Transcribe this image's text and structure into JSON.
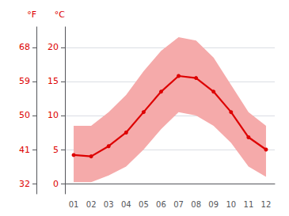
{
  "chart_data": {
    "type": "line",
    "categories": [
      "01",
      "02",
      "03",
      "04",
      "05",
      "06",
      "07",
      "08",
      "09",
      "10",
      "11",
      "12"
    ],
    "values": [
      4.2,
      4.0,
      5.5,
      7.5,
      10.5,
      13.5,
      15.8,
      15.5,
      13.5,
      10.5,
      6.8,
      5.0
    ],
    "color": "#dd0000",
    "band": {
      "lower": [
        0.2,
        0.2,
        1.2,
        2.5,
        5.0,
        8.0,
        10.5,
        10.0,
        8.5,
        6.0,
        2.5,
        1.0
      ],
      "upper": [
        8.5,
        8.5,
        10.5,
        13.0,
        16.5,
        19.5,
        21.5,
        21.0,
        18.5,
        14.5,
        10.5,
        8.5
      ],
      "color": "#f5aaaa"
    },
    "ylim": [
      -1.5,
      23
    ],
    "yticks": [
      0,
      5,
      10,
      15,
      20
    ],
    "ylabel": "°C",
    "y2lim": [
      29.3,
      73.4
    ],
    "y2ticks": [
      32,
      41,
      50,
      59,
      68
    ],
    "y2label": "°F",
    "grid": true
  }
}
